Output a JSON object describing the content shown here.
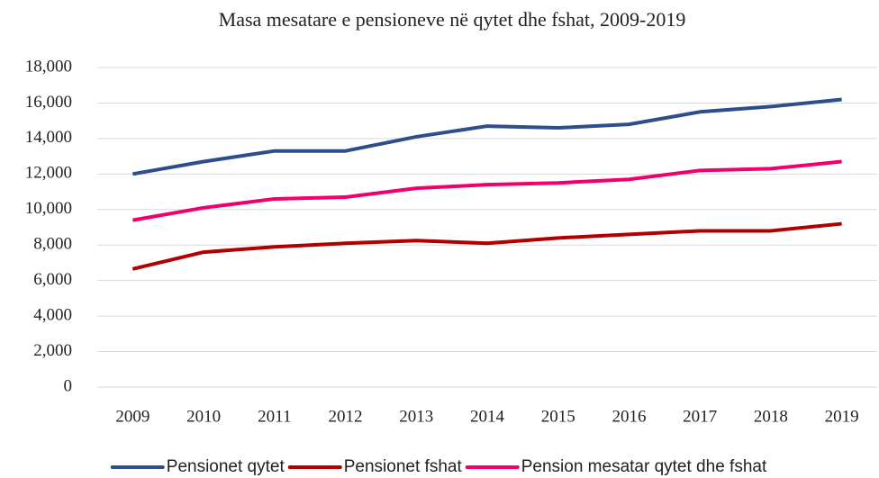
{
  "chart_data": {
    "type": "line",
    "title": "Masa mesatare e pensioneve në qytet dhe fshat, 2009-2019",
    "categories": [
      "2009",
      "2010",
      "2011",
      "2012",
      "2013",
      "2014",
      "2015",
      "2016",
      "2017",
      "2018",
      "2019"
    ],
    "series": [
      {
        "name": "Pensionet qytet",
        "color": "#2e4d8c",
        "values": [
          12000,
          12700,
          13300,
          13300,
          14100,
          14700,
          14600,
          14800,
          15500,
          15800,
          16200
        ]
      },
      {
        "name": "Pensionet fshat",
        "color": "#b00000",
        "values": [
          6650,
          7600,
          7900,
          8100,
          8250,
          8100,
          8400,
          8600,
          8800,
          8800,
          9200
        ]
      },
      {
        "name": "Pension mesatar qytet dhe fshat",
        "color": "#f0006c",
        "values": [
          9400,
          10100,
          10600,
          10700,
          11200,
          11400,
          11500,
          11700,
          12200,
          12300,
          12700
        ]
      }
    ],
    "ylim": [
      0,
      18000
    ],
    "yticks": [
      0,
      {
        "value": 2000,
        "label": "2,000"
      },
      {
        "value": 4000,
        "label": "4,000"
      },
      {
        "value": 6000,
        "label": "6,000"
      },
      {
        "value": 8000,
        "label": "8,000"
      },
      {
        "value": 10000,
        "label": "10,000"
      },
      {
        "value": 12000,
        "label": "12,000"
      },
      {
        "value": 14000,
        "label": "14,000"
      },
      {
        "value": 16000,
        "label": "16,000"
      },
      {
        "value": 18000,
        "label": "18,000"
      }
    ],
    "grid": true,
    "legend": "bottom"
  }
}
